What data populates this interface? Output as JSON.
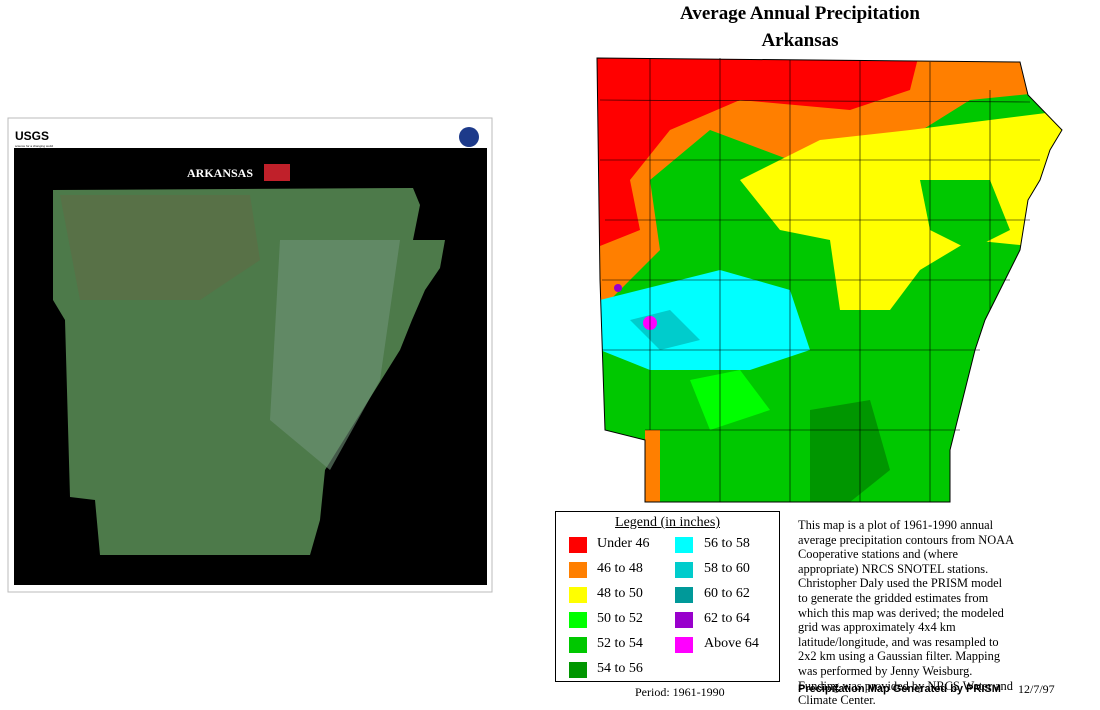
{
  "left_poster": {
    "agency": "USGS",
    "tagline": "science for a changing world",
    "title": "ARKANSAS"
  },
  "map": {
    "title": "Average Annual Precipitation",
    "subtitle": "Arkansas"
  },
  "legend": {
    "title": "Legend (in inches)",
    "items": [
      {
        "label": "Under 46",
        "color": "#ff0000"
      },
      {
        "label": "46 to 48",
        "color": "#ff7f00"
      },
      {
        "label": "48 to 50",
        "color": "#ffff00"
      },
      {
        "label": "50 to 52",
        "color": "#00ff00"
      },
      {
        "label": "52 to 54",
        "color": "#00c800"
      },
      {
        "label": "54 to 56",
        "color": "#009600"
      },
      {
        "label": "56 to 58",
        "color": "#00ffff"
      },
      {
        "label": "58 to 60",
        "color": "#00cccc"
      },
      {
        "label": "60 to 62",
        "color": "#009999"
      },
      {
        "label": "62 to 64",
        "color": "#9900cc"
      },
      {
        "label": "Above 64",
        "color": "#ff00ff"
      }
    ]
  },
  "period": "Period: 1961-1990",
  "description": "This map is a plot of 1961-1990 annual average precipitation contours from NOAA Cooperative stations and (where appropriate) NRCS SNOTEL stations. Christopher Daly used the PRISM model to generate the gridded estimates from which this map was derived; the modeled grid was approximately 4x4 km latitude/longitude, and was resampled to 2x2 km using a Gaussian filter. Mapping was performed by Jenny Weisburg. Funding was provided by NRCS Water and Climate Center.",
  "credit": "Precipitation Map Generated by PRISM",
  "date": "12/7/97"
}
